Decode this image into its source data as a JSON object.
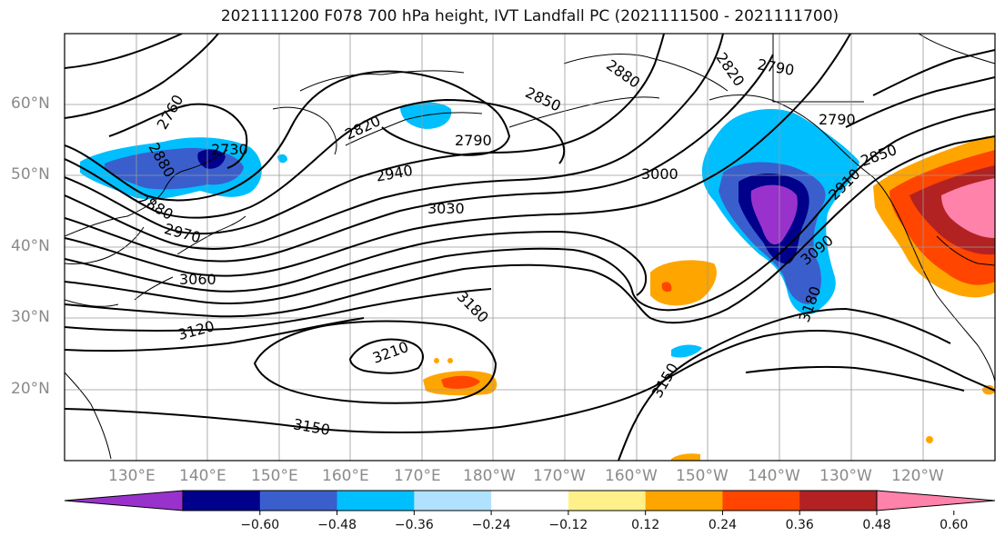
{
  "title": "2021111200 F078 700 hPa height, IVT Landfall PC (2021111500 - 2021111700)",
  "lat_labels": [
    "60°N",
    "50°N",
    "40°N",
    "30°N",
    "20°N"
  ],
  "lon_labels": [
    "130°E",
    "140°E",
    "150°E",
    "160°E",
    "170°E",
    "180°W",
    "170°W",
    "160°W",
    "150°W",
    "140°W",
    "130°W",
    "120°W"
  ],
  "contour_labels": [
    "2760",
    "2790",
    "2820",
    "2850",
    "2880",
    "2790",
    "2820",
    "2880",
    "2790",
    "2850",
    "2910",
    "2940",
    "3000",
    "3030",
    "2970",
    "3060",
    "3120",
    "3090",
    "3180",
    "3210",
    "3180",
    "3150",
    "3150",
    "2730",
    "2880"
  ],
  "colorbar": {
    "ticks": [
      "−0.60",
      "−0.48",
      "−0.36",
      "−0.24",
      "−0.12",
      "0.12",
      "0.24",
      "0.36",
      "0.48",
      "0.60"
    ],
    "colors": [
      "#9932cc",
      "#00008b",
      "#3a5fcd",
      "#00bfff",
      "#b0e2ff",
      "#ffffff",
      "#fff08a",
      "#ffa500",
      "#ff4500",
      "#b22222",
      "#ff82ab"
    ]
  }
}
